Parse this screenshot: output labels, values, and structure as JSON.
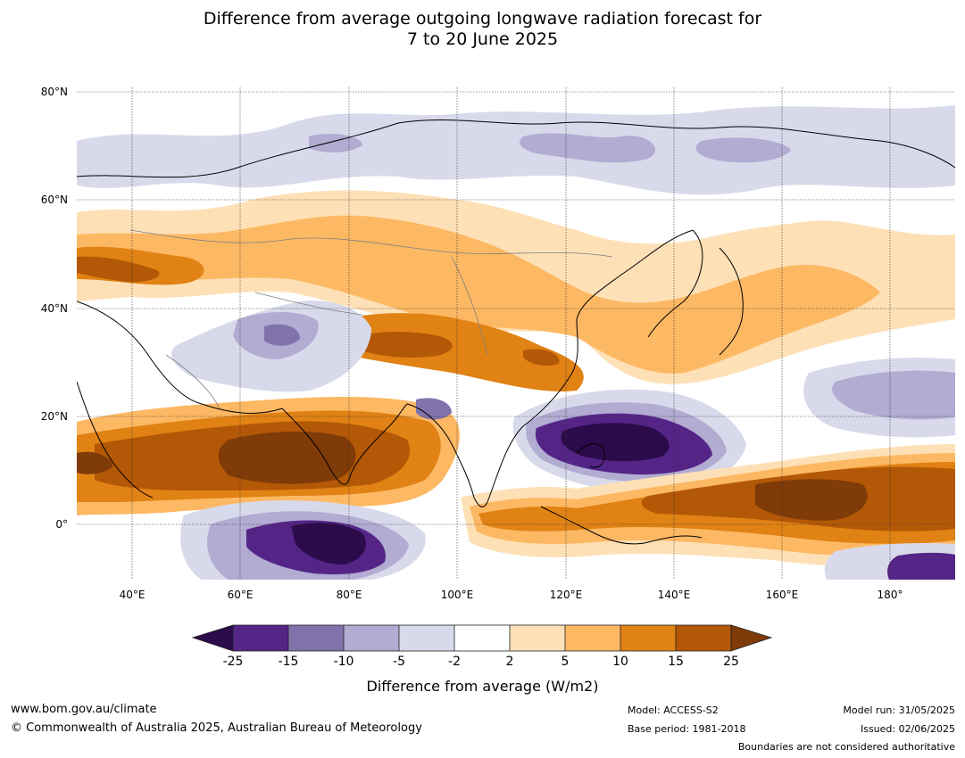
{
  "title_line1": "Difference from average outgoing longwave radiation forecast for",
  "title_line2": "7 to 20 June 2025",
  "lat_labels": [
    "80°N",
    "60°N",
    "40°N",
    "20°N",
    "0°"
  ],
  "lon_labels": [
    "40°E",
    "60°E",
    "80°E",
    "100°E",
    "120°E",
    "140°E",
    "160°E",
    "180°"
  ],
  "colorbar": {
    "ticks": [
      "-25",
      "-15",
      "-10",
      "-5",
      "-2",
      "2",
      "5",
      "10",
      "15",
      "25"
    ],
    "colors": [
      "#2c0b4a",
      "#542587",
      "#8073ac",
      "#b2abd2",
      "#d8daeb",
      "#ffffff",
      "#fee0b6",
      "#fdb863",
      "#e08214",
      "#b35806",
      "#7f3b08"
    ],
    "label": "Difference from average (W/m2)"
  },
  "footer": {
    "website": "www.bom.gov.au/climate",
    "copyright": "© Commonwealth of Australia 2025, Australian Bureau of Meteorology",
    "model": "Model: ACCESS-S2",
    "base_period": "Base period: 1981-2018",
    "model_run": "Model run: 31/05/2025",
    "issued": "Issued: 02/06/2025",
    "disclaimer": "Boundaries are not considered authoritative"
  }
}
